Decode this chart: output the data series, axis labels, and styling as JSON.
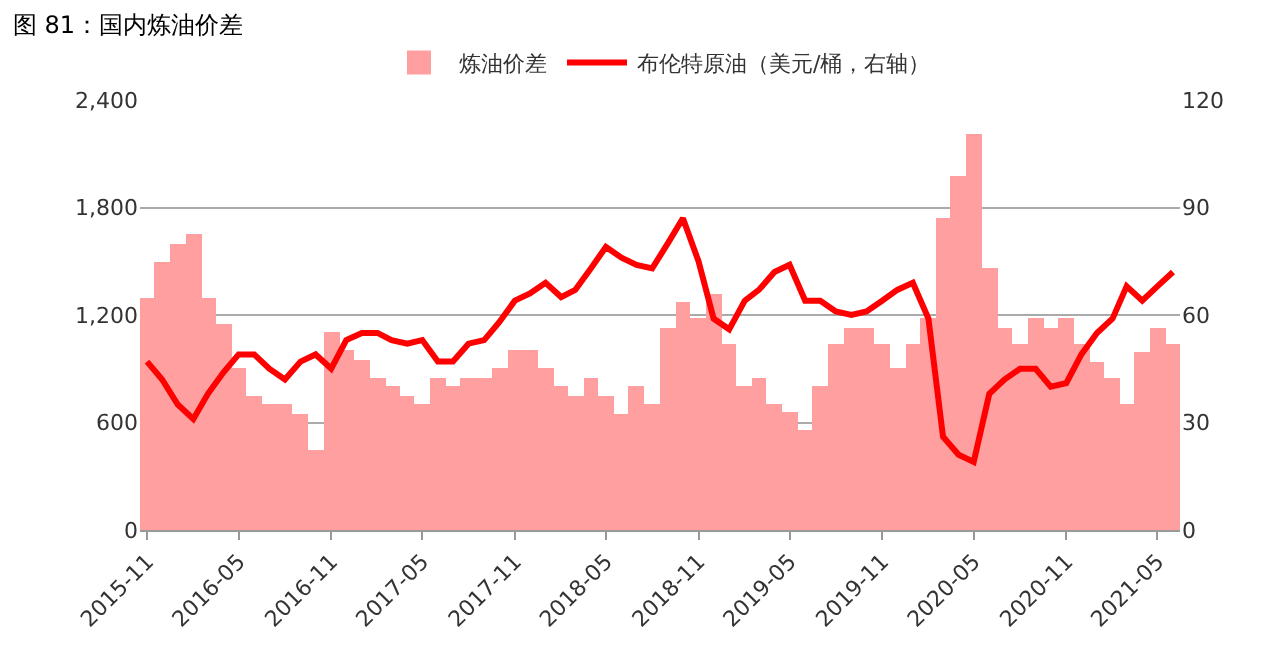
{
  "chart_data": {
    "type": "bar",
    "title": "图 81：国内炼油价差",
    "x": [
      "2015-11",
      "2015-12",
      "2016-01",
      "2016-02",
      "2016-03",
      "2016-04",
      "2016-05",
      "2016-06",
      "2016-07",
      "2016-08",
      "2016-09",
      "2016-10",
      "2016-11",
      "2016-12",
      "2017-01",
      "2017-02",
      "2017-03",
      "2017-04",
      "2017-05",
      "2017-06",
      "2017-07",
      "2017-08",
      "2017-09",
      "2017-10",
      "2017-11",
      "2017-12",
      "2018-01",
      "2018-02",
      "2018-03",
      "2018-04",
      "2018-05",
      "2018-06",
      "2018-07",
      "2018-08",
      "2018-09",
      "2018-10",
      "2018-11",
      "2018-12",
      "2019-01",
      "2019-02",
      "2019-03",
      "2019-04",
      "2019-05",
      "2019-06",
      "2019-07",
      "2019-08",
      "2019-09",
      "2019-10",
      "2019-11",
      "2019-12",
      "2020-01",
      "2020-02",
      "2020-03",
      "2020-04",
      "2020-05",
      "2020-06",
      "2020-07",
      "2020-08",
      "2020-09",
      "2020-10",
      "2020-11",
      "2020-12",
      "2021-01",
      "2021-02",
      "2021-03",
      "2021-04",
      "2021-05",
      "2021-06"
    ],
    "series": [
      {
        "name": "炼油价差",
        "color": "#ff9f9f",
        "values": [
          1300,
          1500,
          1600,
          1650,
          1300,
          1150,
          900,
          750,
          700,
          700,
          650,
          450,
          1100,
          1000,
          950,
          850,
          800,
          750,
          700,
          850,
          800,
          850,
          850,
          900,
          1000,
          1000,
          900,
          800,
          750,
          850,
          750,
          650,
          800,
          700,
          1130,
          1270,
          1180,
          1320,
          1040,
          800,
          850,
          700,
          660,
          560,
          800,
          1040,
          1130,
          1130,
          1040,
          900,
          1040,
          1180,
          1740,
          1980,
          2210,
          1460,
          1130,
          1040,
          1180,
          1130,
          1180,
          1040,
          940,
          850,
          700,
          990,
          1130,
          1040
        ]
      },
      {
        "name": "布伦特原油（美元/桶，右轴）",
        "type": "line",
        "axis": "y2",
        "color": "#ff0000",
        "values": [
          47,
          42,
          35,
          31,
          38,
          44,
          49,
          49,
          45,
          42,
          47,
          49,
          45,
          53,
          55,
          55,
          53,
          52,
          53,
          47,
          47,
          52,
          53,
          58,
          64,
          66,
          69,
          65,
          67,
          73,
          79,
          76,
          74,
          73,
          80,
          87,
          75,
          59,
          56,
          64,
          67,
          72,
          74,
          64,
          64,
          61,
          60,
          61,
          64,
          67,
          69,
          59,
          26,
          21,
          19,
          38,
          42,
          45,
          45,
          40,
          41,
          49,
          55,
          59,
          68,
          64,
          68,
          72
        ]
      }
    ],
    "xlim": [
      "2015-10-18",
      "2021-06-15"
    ],
    "xticks": [
      "2015-11",
      "2016-05",
      "2016-11",
      "2017-05",
      "2017-11",
      "2018-05",
      "2018-11",
      "2019-05",
      "2019-11",
      "2020-05",
      "2020-11",
      "2021-05"
    ],
    "ylim": [
      0,
      2400
    ],
    "yticks": [
      {
        "value": 0,
        "label": "0"
      },
      {
        "value": 600,
        "label": "600"
      },
      {
        "value": 1200,
        "label": "1,200"
      },
      {
        "value": 1800,
        "label": "1,800"
      },
      {
        "value": 2400,
        "label": "2,400"
      }
    ],
    "y2lim": [
      0,
      120
    ],
    "y2ticks": [
      0,
      30,
      60,
      90,
      120
    ],
    "grid": "y",
    "legend": "top"
  }
}
